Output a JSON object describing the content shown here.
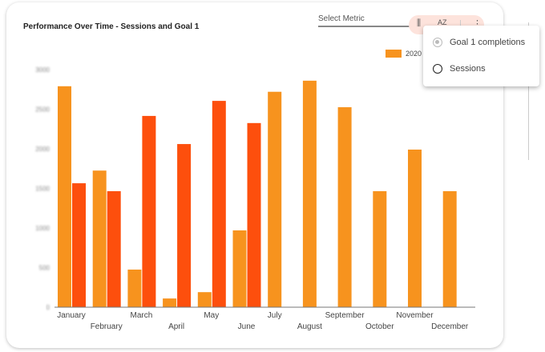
{
  "title": "Performance Over Time - Sessions and Goal 1",
  "select_metric": {
    "placeholder": "Select Metric"
  },
  "toolbar": {
    "icons": [
      "chart-settings-icon",
      "sort-az-icon",
      "more-vertical-icon"
    ],
    "sort_label": "AZ",
    "more_label": "⋮",
    "chart_label": "⫼"
  },
  "metric_menu": {
    "items": [
      {
        "label": "Goal 1 completions",
        "selected": true,
        "disabled": true
      },
      {
        "label": "Sessions",
        "selected": false
      }
    ]
  },
  "colors": {
    "series_2020": "#f7931e",
    "series_2": "#fd4f0d"
  },
  "chart_data": {
    "type": "bar",
    "title": "Performance Over Time - Sessions and Goal 1",
    "categories": [
      "January",
      "February",
      "March",
      "April",
      "May",
      "June",
      "July",
      "August",
      "September",
      "October",
      "November",
      "December"
    ],
    "series": [
      {
        "name": "2020",
        "values": [
          2790,
          1725,
          475,
          110,
          190,
          970,
          2720,
          2860,
          2525,
          1465,
          1990,
          1465
        ]
      },
      {
        "values": [
          1565,
          1465,
          2415,
          2060,
          2605,
          2325,
          null,
          null,
          null,
          null,
          null,
          null
        ]
      }
    ],
    "ylim": [
      0,
      3000
    ],
    "yticks": [
      0,
      500,
      1000,
      1500,
      2000,
      2500,
      3000
    ],
    "legend": "top-right",
    "grid": false
  }
}
